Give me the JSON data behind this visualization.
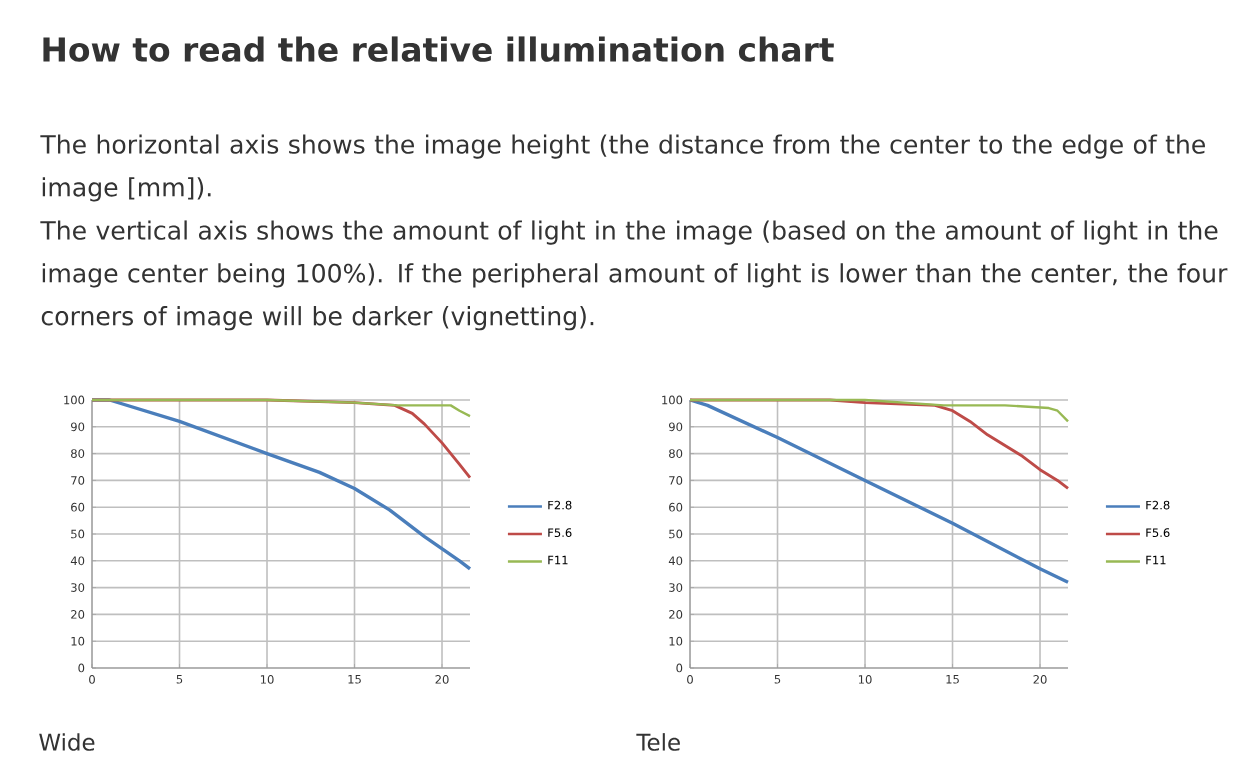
{
  "chart_data": [
    {
      "type": "other",
      "title": "How to read the relative illumination chart",
      "annotations": [
        "The horizontal axis shows the image height (the distance from the center to the edge of the image [mm]).",
        "The vertical axis shows the amount of light in the image (based on the amount of light in the image center being 100%). If the peripheral amount of light is lower than the center, the four corners of image will be darker (vignetting)."
      ]
    },
    {
      "type": "line",
      "annotations": [
        "Wide"
      ],
      "xlim": [
        0,
        21.6
      ],
      "xticks": [
        0,
        5,
        10,
        15,
        20
      ],
      "ylim": [
        0,
        100
      ],
      "yticks": [
        0,
        10,
        20,
        30,
        40,
        50,
        60,
        70,
        80,
        90,
        100
      ],
      "grid": true,
      "legend": "right",
      "series": [
        {
          "name": "F2.8",
          "color": "#4a7ebb",
          "x": [
            0,
            1,
            2,
            5,
            10,
            13,
            15,
            17,
            19,
            21,
            21.6
          ],
          "values": [
            100,
            100,
            98,
            92,
            80,
            73,
            67,
            59,
            49,
            40,
            37
          ]
        },
        {
          "name": "F5.6",
          "color": "#be4b48",
          "x": [
            0,
            10,
            15,
            17.3,
            18.3,
            19,
            20,
            21,
            21.6
          ],
          "values": [
            100,
            100,
            99,
            98,
            95,
            91,
            84,
            76,
            71
          ]
        },
        {
          "name": "F11",
          "color": "#98b954",
          "x": [
            0,
            10,
            15,
            17.5,
            20.5,
            21,
            21.6
          ],
          "values": [
            100,
            100,
            99,
            98,
            98,
            96,
            94
          ]
        }
      ]
    },
    {
      "type": "line",
      "annotations": [
        "Tele"
      ],
      "xlim": [
        0,
        21.6
      ],
      "xticks": [
        0,
        5,
        10,
        15,
        20
      ],
      "ylim": [
        0,
        100
      ],
      "yticks": [
        0,
        10,
        20,
        30,
        40,
        50,
        60,
        70,
        80,
        90,
        100
      ],
      "grid": true,
      "legend": "right",
      "series": [
        {
          "name": "F2.8",
          "color": "#4a7ebb",
          "x": [
            0,
            1,
            5,
            10,
            15,
            20,
            21.6
          ],
          "values": [
            100,
            98,
            86,
            70,
            54,
            37,
            32
          ]
        },
        {
          "name": "F5.6",
          "color": "#be4b48",
          "x": [
            0,
            8,
            10,
            14,
            15,
            16,
            17,
            18,
            19,
            20,
            21,
            21.6
          ],
          "values": [
            100,
            100,
            99,
            98,
            96,
            92,
            87,
            83,
            79,
            74,
            70,
            67
          ]
        },
        {
          "name": "F11",
          "color": "#98b954",
          "x": [
            0,
            10,
            14.5,
            18,
            20.5,
            21,
            21.6
          ],
          "values": [
            100,
            100,
            98,
            98,
            97,
            96,
            92
          ]
        }
      ]
    }
  ]
}
